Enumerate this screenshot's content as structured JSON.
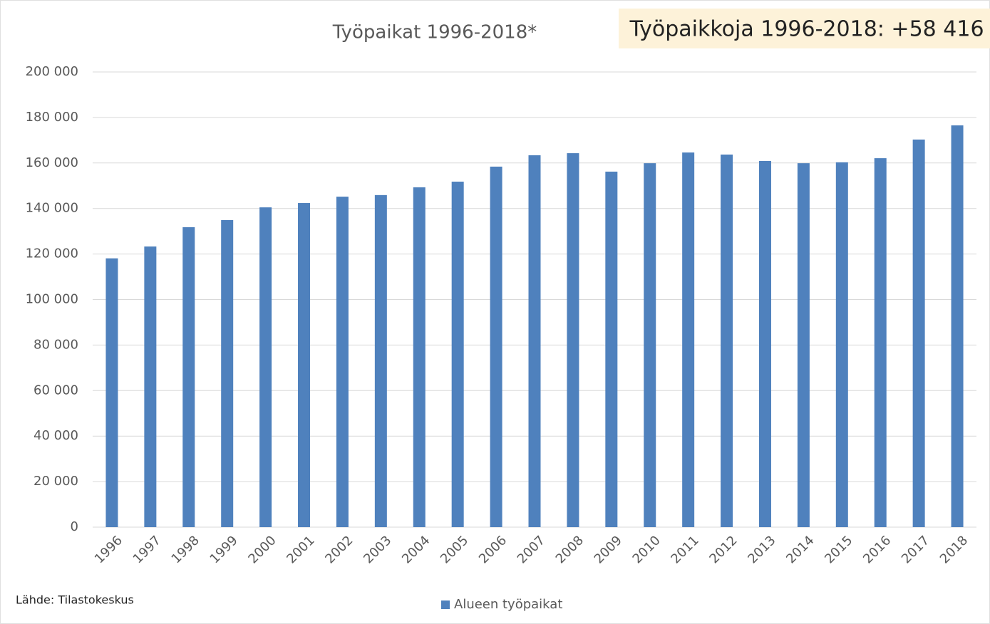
{
  "chart_data": {
    "type": "bar",
    "title": "Työpaikat 1996-2018*",
    "annotation": "Työpaikkoja 1996-2018: +58 416",
    "source": "Lähde: Tilastokeskus",
    "categories": [
      "1996",
      "1997",
      "1998",
      "1999",
      "2000",
      "2001",
      "2002",
      "2003",
      "2004",
      "2005",
      "2006",
      "2007",
      "2008",
      "2009",
      "2010",
      "2011",
      "2012",
      "2013",
      "2014",
      "2015",
      "2016",
      "2017",
      "2018"
    ],
    "series": [
      {
        "name": "Alueen työpaikat",
        "color": "#4f81bd",
        "values": [
          118100,
          123300,
          131800,
          134900,
          140500,
          142400,
          145200,
          145900,
          149300,
          151800,
          158400,
          163400,
          164300,
          156200,
          159900,
          164600,
          163700,
          160900,
          159900,
          160300,
          162100,
          170300,
          176516
        ]
      }
    ],
    "ylim": [
      0,
      200000
    ],
    "yticks": [
      0,
      {
        "value": 20000,
        "label": "20 000"
      },
      {
        "value": 40000,
        "label": "40 000"
      },
      {
        "value": 60000,
        "label": "60 000"
      },
      {
        "value": 80000,
        "label": "80 000"
      },
      {
        "value": 100000,
        "label": "100 000"
      },
      {
        "value": 120000,
        "label": "120 000"
      },
      {
        "value": 140000,
        "label": "140 000"
      },
      {
        "value": 160000,
        "label": "160 000"
      },
      {
        "value": 180000,
        "label": "180 000"
      },
      {
        "value": 200000,
        "label": "200 000"
      }
    ],
    "grid": true,
    "legend": "bottom"
  }
}
